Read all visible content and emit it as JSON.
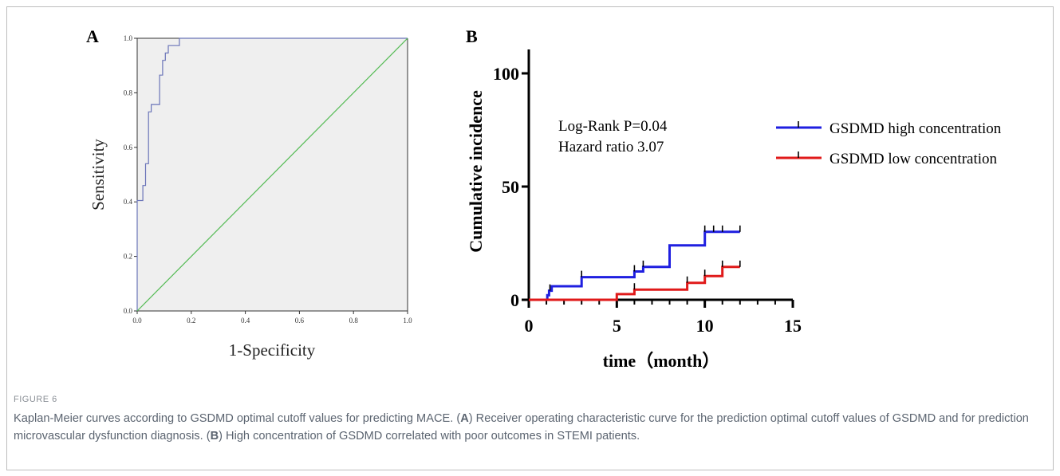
{
  "panels": {
    "a": {
      "letter": "A",
      "chart_data": {
        "type": "line",
        "xlabel": "1-Specificity",
        "ylabel": "Sensitivity",
        "xlim": [
          0,
          1
        ],
        "ylim": [
          0,
          1
        ],
        "xticks": [
          "0.0",
          "0.2",
          "0.4",
          "0.6",
          "0.8",
          "1.0"
        ],
        "yticks": [
          "0.0",
          "0.2",
          "0.4",
          "0.6",
          "0.8",
          "1.0"
        ],
        "grid": false,
        "series": [
          {
            "name": "",
            "color": "#6a74b8",
            "points": [
              [
                0,
                0
              ],
              [
                0,
                0.405
              ],
              [
                0.021,
                0.405
              ],
              [
                0.021,
                0.46
              ],
              [
                0.031,
                0.46
              ],
              [
                0.031,
                0.54
              ],
              [
                0.042,
                0.54
              ],
              [
                0.042,
                0.73
              ],
              [
                0.052,
                0.73
              ],
              [
                0.052,
                0.757
              ],
              [
                0.083,
                0.757
              ],
              [
                0.083,
                0.865
              ],
              [
                0.094,
                0.865
              ],
              [
                0.094,
                0.919
              ],
              [
                0.104,
                0.919
              ],
              [
                0.104,
                0.946
              ],
              [
                0.115,
                0.946
              ],
              [
                0.115,
                0.973
              ],
              [
                0.156,
                0.973
              ],
              [
                0.156,
                1.0
              ],
              [
                1.0,
                1.0
              ]
            ]
          },
          {
            "name": "",
            "color": "#55bb55",
            "points": [
              [
                0,
                0
              ],
              [
                1,
                1
              ]
            ]
          }
        ]
      }
    },
    "b": {
      "letter": "B",
      "annotation_line1": "Log-Rank P=0.04",
      "annotation_line2": "Hazard ratio 3.07",
      "chart_data": {
        "type": "line",
        "xlabel": "time（month）",
        "ylabel": "Cumulative incidence",
        "xlim": [
          0,
          15
        ],
        "ylim": [
          0,
          100
        ],
        "xticks": [
          "0",
          "5",
          "10",
          "15"
        ],
        "yticks": [
          "0",
          "50",
          "100"
        ],
        "legend_position": "right",
        "series": [
          {
            "name": "GSDMD high concentration",
            "color": "#1f1fe0",
            "steps": [
              [
                0,
                0
              ],
              [
                1.05,
                0
              ],
              [
                1.05,
                2
              ],
              [
                1.15,
                2
              ],
              [
                1.15,
                4
              ],
              [
                1.3,
                4
              ],
              [
                1.3,
                6
              ],
              [
                3,
                6
              ],
              [
                3,
                10
              ],
              [
                6,
                10
              ],
              [
                6,
                12.5
              ],
              [
                6.5,
                12.5
              ],
              [
                6.5,
                14.5
              ],
              [
                8,
                14.5
              ],
              [
                8,
                24
              ],
              [
                10,
                24
              ],
              [
                10,
                30
              ],
              [
                12,
                30
              ]
            ],
            "censor_x": [
              1.2,
              3,
              6,
              6.5,
              10,
              10.5,
              11,
              12
            ]
          },
          {
            "name": "GSDMD low concentration",
            "color": "#e01a1a",
            "steps": [
              [
                0,
                0
              ],
              [
                5,
                0
              ],
              [
                5,
                2.5
              ],
              [
                6,
                2.5
              ],
              [
                6,
                4.5
              ],
              [
                9,
                4.5
              ],
              [
                9,
                7.5
              ],
              [
                10,
                7.5
              ],
              [
                10,
                10.5
              ],
              [
                11,
                10.5
              ],
              [
                11,
                14.5
              ],
              [
                12,
                14.5
              ]
            ],
            "censor_x": [
              6,
              9,
              10,
              11,
              12
            ]
          }
        ]
      }
    }
  },
  "caption": {
    "label": "FIGURE 6",
    "text_1": "Kaplan-Meier curves according to GSDMD optimal cutoff values for predicting MACE. (",
    "ref_a": "A",
    "text_2": ") Receiver operating characteristic curve for the prediction optimal cutoff values of GSDMD and for prediction microvascular dysfunction diagnosis. (",
    "ref_b": "B",
    "text_3": ") High concentration of GSDMD correlated with poor outcomes in STEMI patients."
  }
}
